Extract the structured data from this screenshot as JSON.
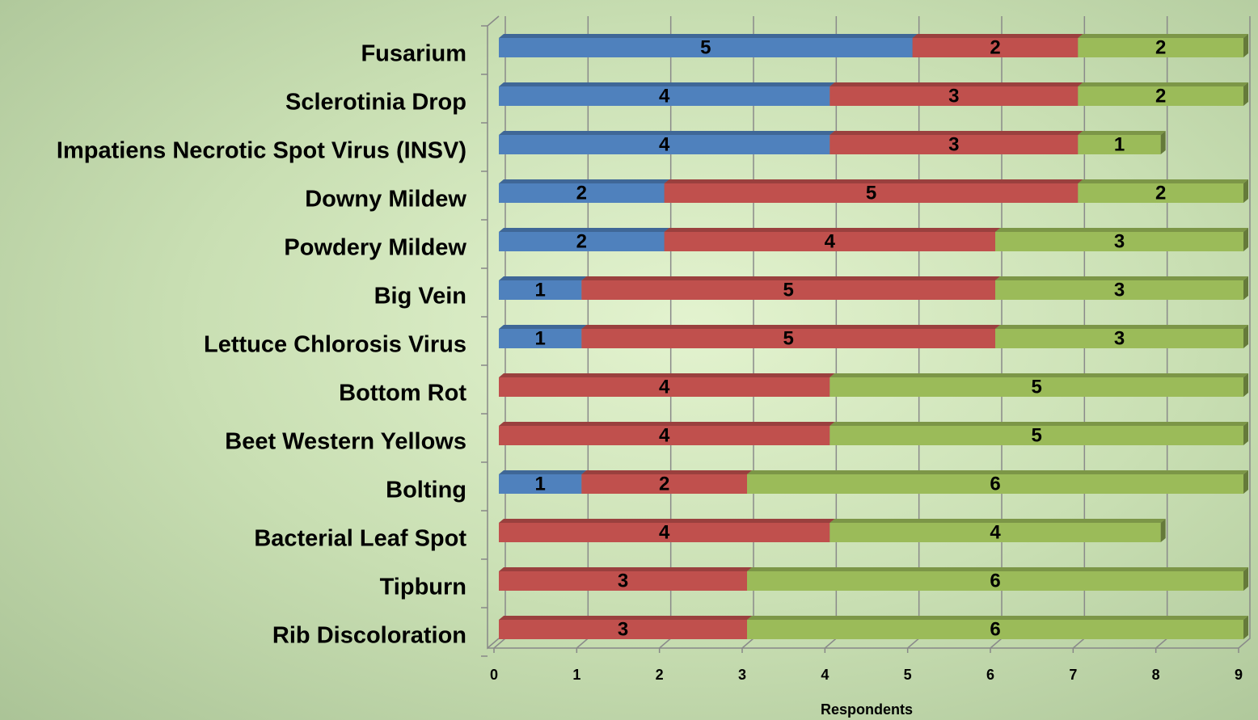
{
  "chart_data": {
    "type": "stacked-bar-horizontal",
    "x_label": "Respondents",
    "categories": [
      "Fusarium",
      "Sclerotinia Drop",
      "Impatiens Necrotic Spot Virus (INSV)",
      "Downy Mildew",
      "Powdery Mildew",
      "Big Vein",
      "Lettuce Chlorosis Virus",
      "Bottom Rot",
      "Beet Western Yellows",
      "Bolting",
      "Bacterial Leaf Spot",
      "Tipburn",
      "Rib Discoloration"
    ],
    "series": [
      {
        "color": "#4f81bd",
        "values": [
          5,
          4,
          4,
          2,
          2,
          1,
          1,
          null,
          null,
          1,
          null,
          null,
          null
        ]
      },
      {
        "color": "#c0504d",
        "values": [
          2,
          3,
          3,
          5,
          4,
          5,
          5,
          4,
          4,
          2,
          4,
          3,
          3
        ]
      },
      {
        "color": "#9bbb59",
        "values": [
          2,
          2,
          1,
          2,
          3,
          3,
          3,
          5,
          5,
          6,
          4,
          6,
          6
        ]
      }
    ],
    "xlim": [
      0,
      9
    ],
    "xticks": [
      0,
      1,
      2,
      3,
      4,
      5,
      6,
      7,
      8,
      9
    ],
    "grid": true
  }
}
